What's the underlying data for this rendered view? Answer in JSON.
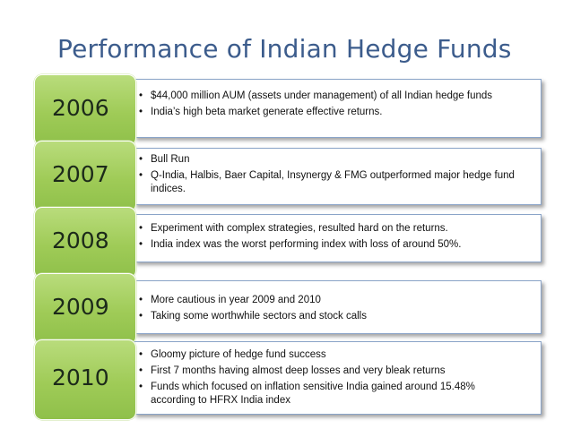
{
  "title": "Performance of Indian Hedge Funds",
  "rows": [
    {
      "year": "2006",
      "bullets": [
        "$44,000 million AUM (assets under management) of all Indian hedge funds",
        "India’s high beta market generate effective returns."
      ]
    },
    {
      "year": "2007",
      "bullets": [
        "Bull Run",
        "Q-India, Halbis, Baer Capital, Insynergy & FMG outperformed major hedge fund indices."
      ]
    },
    {
      "year": "2008",
      "bullets": [
        "Experiment with complex strategies, resulted hard on the returns.",
        "India index was the worst performing index with loss of around 50%."
      ]
    },
    {
      "year": "2009",
      "bullets": [
        "More cautious in year 2009 and 2010",
        "Taking some worthwhile sectors and stock calls"
      ]
    },
    {
      "year": "2010",
      "bullets": [
        "Gloomy picture of hedge fund success",
        "First 7 months having almost deep losses and very bleak returns",
        "Funds which focused on inflation sensitive India gained around 15.48% according to HFRX India index"
      ]
    }
  ],
  "colors": {
    "title": "#3c5c8c",
    "year_fill": "#9fcb57",
    "box_border": "#8aa4c8"
  }
}
